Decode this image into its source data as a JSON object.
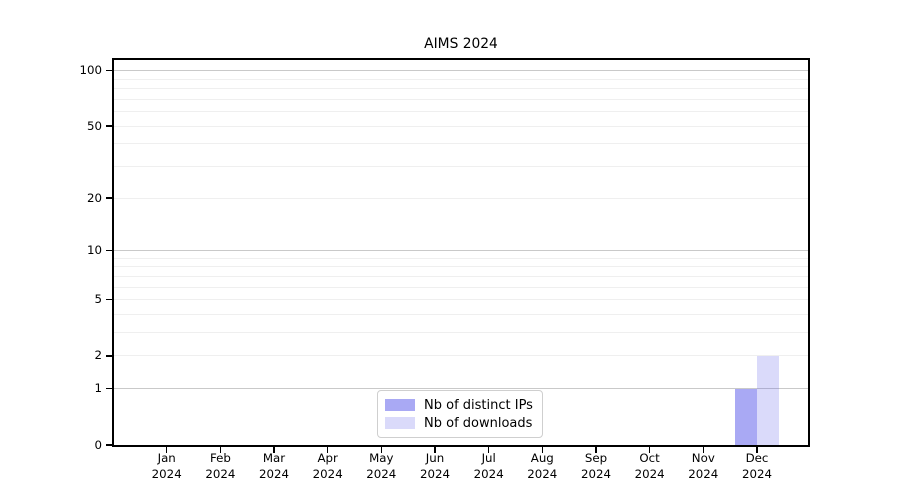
{
  "chart_data": {
    "type": "bar",
    "title": "AIMS 2024",
    "categories": [
      {
        "month": "Jan",
        "year": "2024"
      },
      {
        "month": "Feb",
        "year": "2024"
      },
      {
        "month": "Mar",
        "year": "2024"
      },
      {
        "month": "Apr",
        "year": "2024"
      },
      {
        "month": "May",
        "year": "2024"
      },
      {
        "month": "Jun",
        "year": "2024"
      },
      {
        "month": "Jul",
        "year": "2024"
      },
      {
        "month": "Aug",
        "year": "2024"
      },
      {
        "month": "Sep",
        "year": "2024"
      },
      {
        "month": "Oct",
        "year": "2024"
      },
      {
        "month": "Nov",
        "year": "2024"
      },
      {
        "month": "Dec",
        "year": "2024"
      }
    ],
    "series": [
      {
        "name": "Nb of distinct IPs",
        "color": "#6363eb",
        "alpha": 0.55,
        "values": [
          0,
          0,
          0,
          0,
          0,
          0,
          0,
          0,
          0,
          0,
          0,
          1
        ]
      },
      {
        "name": "Nb of downloads",
        "color": "#6363eb",
        "alpha": 0.235,
        "values": [
          0,
          0,
          0,
          0,
          0,
          0,
          0,
          0,
          0,
          0,
          0,
          2
        ]
      }
    ],
    "yticks": [
      0,
      1,
      2,
      5,
      10,
      20,
      50,
      100
    ],
    "major_gridlines": [
      1,
      10,
      100
    ],
    "minor_gridlines": [
      2,
      3,
      4,
      5,
      6,
      7,
      8,
      9,
      20,
      30,
      40,
      50,
      60,
      70,
      80,
      90
    ],
    "scale": "log1p",
    "ylim": [
      0,
      112
    ],
    "xlabel": "",
    "ylabel": "",
    "grid": true,
    "legend_position": "lower center",
    "colors": {
      "spine": "#000000",
      "major_grid": "#c9c9c9",
      "minor_grid": "#efefef",
      "legend_border": "#cfcfcf"
    }
  }
}
